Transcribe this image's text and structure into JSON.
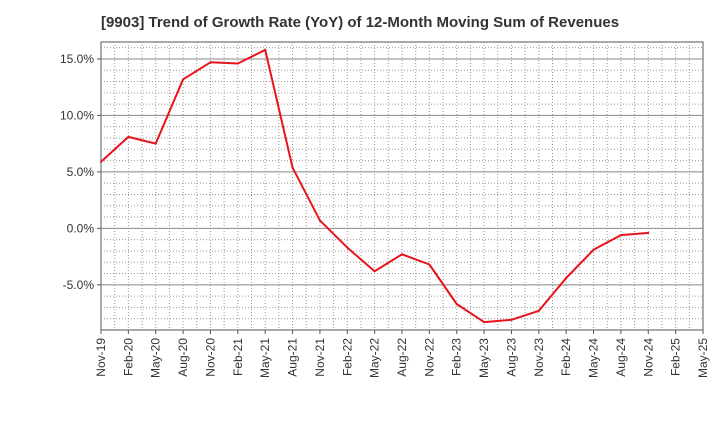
{
  "chart_data": {
    "type": "line",
    "title": "[9903]  Trend of Growth Rate (YoY) of 12-Month Moving Sum of Revenues",
    "xlabel": "",
    "ylabel": "",
    "x_tick_labels": [
      "Nov-19",
      "Feb-20",
      "May-20",
      "Aug-20",
      "Nov-20",
      "Feb-21",
      "May-21",
      "Aug-21",
      "Nov-21",
      "Feb-22",
      "May-22",
      "Aug-22",
      "Nov-22",
      "Feb-23",
      "May-23",
      "Aug-23",
      "Nov-23",
      "Feb-24",
      "May-24",
      "Aug-24",
      "Nov-24",
      "Feb-25",
      "May-25"
    ],
    "y_ticks": [
      15,
      10,
      5,
      0,
      -5
    ],
    "y_tick_labels": [
      "15.0%",
      "10.0%",
      "5.0%",
      "0.0%",
      "-5.0%"
    ],
    "ylim": [
      -9,
      16.5
    ],
    "grid": true,
    "legend": "none",
    "series": [
      {
        "color": "#e8141b",
        "x": [
          "Nov-19",
          "Feb-20",
          "May-20",
          "Aug-20",
          "Nov-20",
          "Feb-21",
          "May-21",
          "Aug-21",
          "Nov-21",
          "Feb-22",
          "May-22",
          "Aug-22",
          "Nov-22",
          "Feb-23",
          "May-23",
          "Aug-23",
          "Nov-23",
          "Feb-24",
          "May-24",
          "Aug-24",
          "Nov-24"
        ],
        "values": [
          5.9,
          8.1,
          7.5,
          13.2,
          14.7,
          14.6,
          15.8,
          5.4,
          0.7,
          -1.7,
          -3.8,
          -2.3,
          -3.2,
          -6.7,
          -8.3,
          -8.1,
          -7.3,
          -4.4,
          -1.9,
          -0.6,
          -0.4
        ]
      }
    ]
  }
}
